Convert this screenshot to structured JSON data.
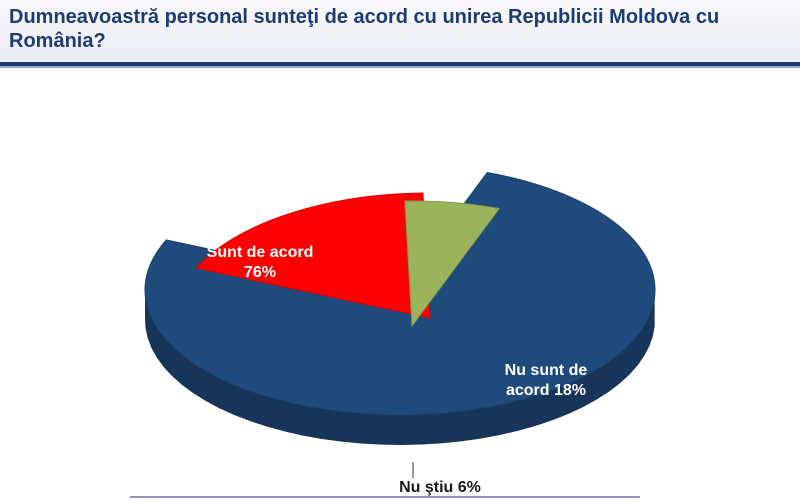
{
  "title": "Dumneavoastră personal sunteţi de acord cu unirea Republicii Moldova cu România?",
  "chart_data": {
    "type": "pie",
    "title": "Dumneavoastră personal sunteţi de acord cu unirea Republicii Moldova cu România?",
    "slices": [
      {
        "label_line1": "Sunt de acord",
        "label_line2": "76%",
        "value": 76,
        "color": "#1f4a7c"
      },
      {
        "label_line1": "Nu sunt de",
        "label_line2": "acord 18%",
        "value": 18,
        "color": "#ff0000"
      },
      {
        "label_line1": "Nu ştiu 6%",
        "label_line2": "",
        "value": 6,
        "color": "#9bb35a"
      }
    ]
  }
}
